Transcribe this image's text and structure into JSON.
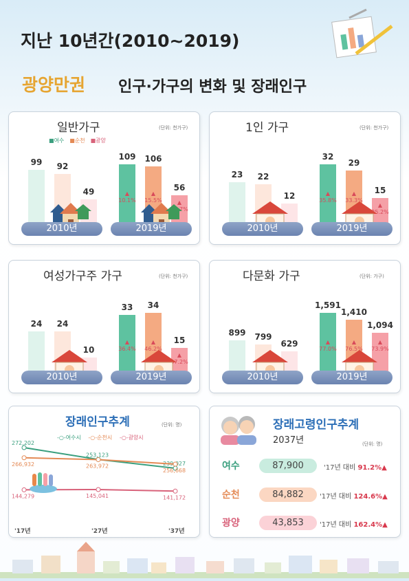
{
  "title_line1": "지난 10년간(2010~2019)",
  "title_line2_region": "광양만권",
  "title_line2_rest": "인구·가구의 변화 및 장래인구",
  "legend": [
    "여수",
    "순천",
    "광양"
  ],
  "colors": {
    "yeosu": "#5ec2a0",
    "suncheon": "#f4aa82",
    "gwangyang": "#f5a0a7",
    "pill": "#7d93bc"
  },
  "panels": [
    {
      "title": "일반가구",
      "unit": "(단위: 천가구)",
      "year_a": "2010년",
      "year_b": "2019년",
      "values_a": [
        "99",
        "92",
        "49"
      ],
      "values_b": [
        "109",
        "106",
        "56"
      ],
      "growth": [
        "10.1%",
        "15.5%",
        "13.7%"
      ]
    },
    {
      "title": "1인 가구",
      "unit": "(단위: 천가구)",
      "year_a": "2010년",
      "year_b": "2019년",
      "values_a": [
        "23",
        "22",
        "12"
      ],
      "values_b": [
        "32",
        "29",
        "15"
      ],
      "growth": [
        "35.8%",
        "33.3%",
        "25.2%"
      ]
    },
    {
      "title": "여성가구주 가구",
      "unit": "(단위: 천가구)",
      "year_a": "2010년",
      "year_b": "2019년",
      "values_a": [
        "24",
        "24",
        "10"
      ],
      "values_b": [
        "33",
        "34",
        "15"
      ],
      "growth": [
        "36.4%",
        "46.2%",
        "47.2%"
      ]
    },
    {
      "title": "다문화 가구",
      "unit": "(단위: 가구)",
      "year_a": "2010년",
      "year_b": "2019년",
      "values_a": [
        "899",
        "799",
        "629"
      ],
      "values_b": [
        "1,591",
        "1,410",
        "1,094"
      ],
      "growth": [
        "77.0%",
        "76.5%",
        "73.9%"
      ]
    }
  ],
  "projection": {
    "title": "장래인구추계",
    "unit": "(단위: 명)",
    "legend": [
      "여수시",
      "순천시",
      "광양시"
    ],
    "x_labels": [
      "'17년",
      "'27년",
      "'37년"
    ],
    "labels": {
      "yeosu": [
        "272,202",
        "253,123",
        "239,027"
      ],
      "suncheon": [
        "266,932",
        "263,972",
        "256,668"
      ],
      "gwangyang": [
        "144,279",
        "145,041",
        "141,172"
      ]
    }
  },
  "elderly": {
    "title": "장래고령인구추계",
    "year": "2037년",
    "unit": "(단위: 명)",
    "rows": [
      {
        "city": "여수",
        "value": "87,900",
        "cmp": "'17년 대비",
        "rate": "91.2%▲"
      },
      {
        "city": "순천",
        "value": "84,882",
        "cmp": "'17년 대비",
        "rate": "124.6%▲"
      },
      {
        "city": "광양",
        "value": "43,853",
        "cmp": "'17년 대비",
        "rate": "162.4%▲"
      }
    ]
  },
  "chart_data": [
    {
      "type": "bar",
      "title": "일반가구",
      "categories": [
        "2010년",
        "2019년"
      ],
      "series": [
        {
          "name": "여수",
          "values": [
            99,
            109
          ]
        },
        {
          "name": "순천",
          "values": [
            92,
            106
          ]
        },
        {
          "name": "광양",
          "values": [
            49,
            56
          ]
        }
      ]
    },
    {
      "type": "bar",
      "title": "1인 가구",
      "categories": [
        "2010년",
        "2019년"
      ],
      "series": [
        {
          "name": "여수",
          "values": [
            23,
            32
          ]
        },
        {
          "name": "순천",
          "values": [
            22,
            29
          ]
        },
        {
          "name": "광양",
          "values": [
            12,
            15
          ]
        }
      ]
    },
    {
      "type": "bar",
      "title": "여성가구주 가구",
      "categories": [
        "2010년",
        "2019년"
      ],
      "series": [
        {
          "name": "여수",
          "values": [
            24,
            33
          ]
        },
        {
          "name": "순천",
          "values": [
            24,
            34
          ]
        },
        {
          "name": "광양",
          "values": [
            10,
            15
          ]
        }
      ]
    },
    {
      "type": "bar",
      "title": "다문화 가구",
      "categories": [
        "2010년",
        "2019년"
      ],
      "series": [
        {
          "name": "여수",
          "values": [
            899,
            1591
          ]
        },
        {
          "name": "순천",
          "values": [
            799,
            1410
          ]
        },
        {
          "name": "광양",
          "values": [
            629,
            1094
          ]
        }
      ]
    },
    {
      "type": "line",
      "title": "장래인구추계",
      "x": [
        "'17년",
        "'27년",
        "'37년"
      ],
      "series": [
        {
          "name": "여수시",
          "values": [
            272202,
            253123,
            239027
          ]
        },
        {
          "name": "순천시",
          "values": [
            266932,
            263972,
            256668
          ]
        },
        {
          "name": "광양시",
          "values": [
            144279,
            145041,
            141172
          ]
        }
      ]
    }
  ]
}
